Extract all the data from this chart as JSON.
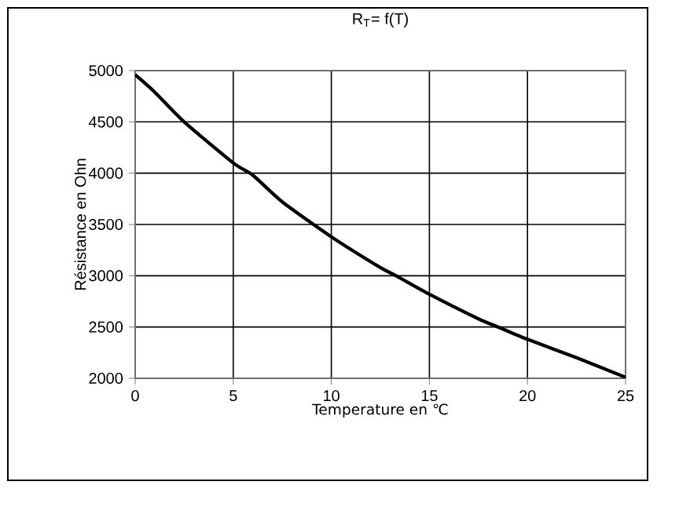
{
  "chart_data": {
    "type": "line",
    "title": "R$_{T}$= f(T)",
    "xlabel": "Temperature en ℃",
    "ylabel": "Résistance en Ohn",
    "x": [
      0,
      1,
      2.5,
      5,
      6,
      7.5,
      10,
      12.5,
      13.3,
      15,
      17.5,
      18.5,
      20,
      22.5,
      25
    ],
    "series": [
      {
        "color": "#000000",
        "values": [
          4960,
          4790,
          4500,
          4100,
          3980,
          3720,
          3380,
          3080,
          3000,
          2820,
          2580,
          2500,
          2380,
          2200,
          2010
        ]
      }
    ],
    "xlim": [
      0,
      25
    ],
    "xticks": [
      0,
      5,
      10,
      15,
      20,
      25
    ],
    "ylim": [
      2000,
      5000
    ],
    "yticks": [
      2000,
      2500,
      3000,
      3500,
      4000,
      4500,
      5000
    ],
    "grid": true,
    "marker": "none",
    "line_style": "solid"
  }
}
